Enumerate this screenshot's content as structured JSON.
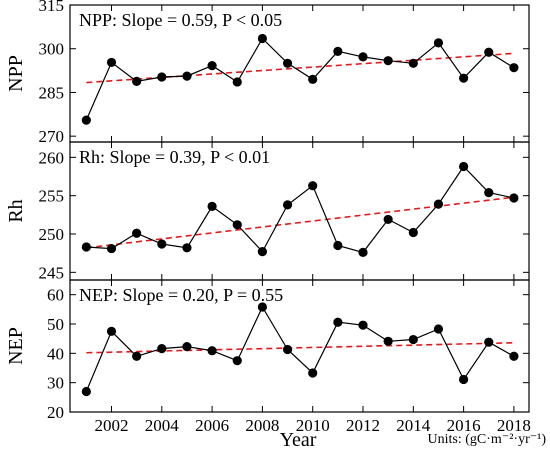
{
  "chart_data": [
    {
      "type": "line",
      "ylabel": "NPP",
      "annotation": "NPP: Slope = 0.59, P < 0.05",
      "ylim": [
        268,
        315
      ],
      "yticks": [
        270,
        285,
        300,
        315
      ],
      "x": [
        2001,
        2002,
        2003,
        2004,
        2005,
        2006,
        2007,
        2008,
        2009,
        2010,
        2011,
        2012,
        2013,
        2014,
        2015,
        2016,
        2017,
        2018
      ],
      "values": [
        275.5,
        295.3,
        288.8,
        290.3,
        290.6,
        294.2,
        288.6,
        303.5,
        295.0,
        289.5,
        299.1,
        297.2,
        295.9,
        295.0,
        302.0,
        289.9,
        298.8,
        293.5
      ],
      "trend": {
        "start": 288.4,
        "end": 298.4
      },
      "colors": {
        "points": "#000000",
        "line": "#000000",
        "trend": "#e31a1c"
      }
    },
    {
      "type": "line",
      "ylabel": "Rh",
      "annotation": "Rh: Slope = 0.39, P < 0.01",
      "ylim": [
        244,
        262
      ],
      "yticks": [
        245,
        250,
        255,
        260
      ],
      "x": [
        2001,
        2002,
        2003,
        2004,
        2005,
        2006,
        2007,
        2008,
        2009,
        2010,
        2011,
        2012,
        2013,
        2014,
        2015,
        2016,
        2017,
        2018
      ],
      "values": [
        248.3,
        248.1,
        250.1,
        248.7,
        248.2,
        253.6,
        251.2,
        247.7,
        253.8,
        256.3,
        248.5,
        247.6,
        251.9,
        250.2,
        253.9,
        258.8,
        255.4,
        254.7
      ],
      "trend": {
        "start": 248.2,
        "end": 254.8
      },
      "colors": {
        "points": "#000000",
        "line": "#000000",
        "trend": "#e31a1c"
      }
    },
    {
      "type": "line",
      "ylabel": "NEP",
      "annotation": "NEP: Slope = 0.20, P = 0.55",
      "ylim": [
        20,
        65
      ],
      "yticks": [
        20,
        30,
        40,
        50,
        60
      ],
      "xlabel": "Year",
      "xticks": [
        2002,
        2004,
        2006,
        2008,
        2010,
        2012,
        2014,
        2016,
        2018
      ],
      "x": [
        2001,
        2002,
        2003,
        2004,
        2005,
        2006,
        2007,
        2008,
        2009,
        2010,
        2011,
        2012,
        2013,
        2014,
        2015,
        2016,
        2017,
        2018
      ],
      "values": [
        27.0,
        47.5,
        39.0,
        41.6,
        42.3,
        40.9,
        37.5,
        55.8,
        41.3,
        33.3,
        50.6,
        49.6,
        44.1,
        44.7,
        48.3,
        31.1,
        43.8,
        39.0
      ],
      "trend": {
        "start": 40.2,
        "end": 43.6
      },
      "colors": {
        "points": "#000000",
        "line": "#000000",
        "trend": "#e31a1c"
      }
    }
  ],
  "units_note": "Units: (gC·m⁻²·yr⁻¹)"
}
